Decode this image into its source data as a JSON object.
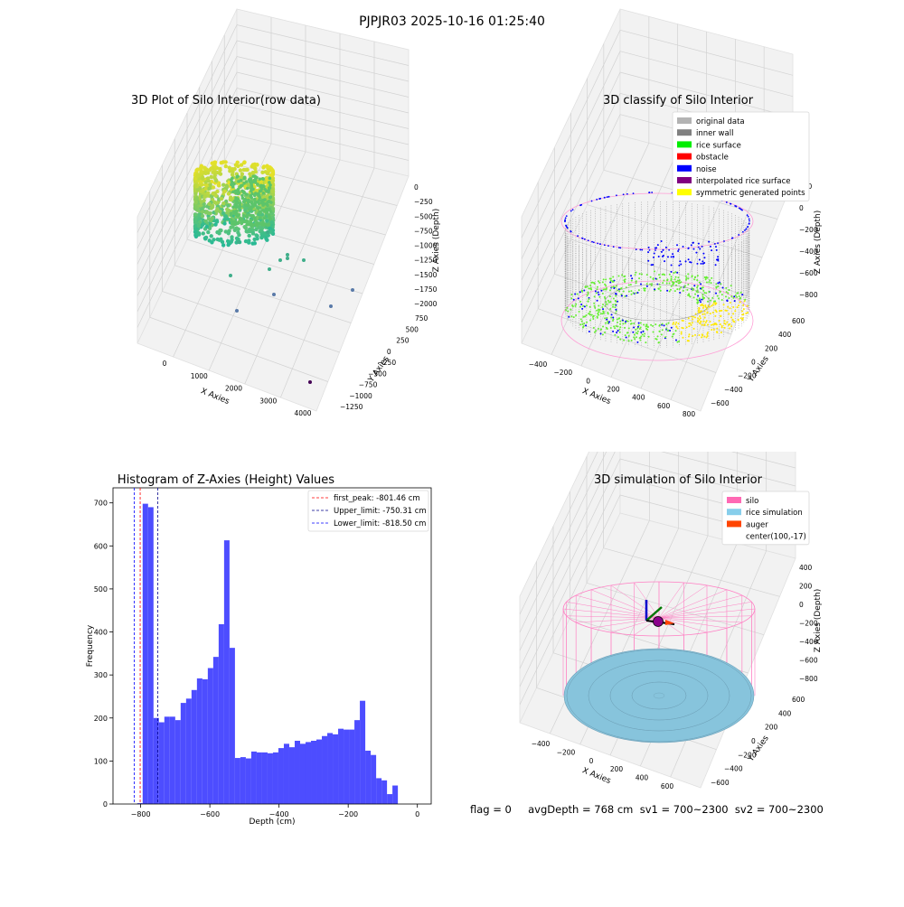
{
  "suptitle": "PJPJR03 2025-10-16 01:25:40",
  "panels": {
    "raw": {
      "title": "3D Plot of Silo Interior(row data)",
      "xlabel": "X Axies",
      "ylabel": "Y Axies",
      "zlabel": "Z Axies (Depth)",
      "xticks": [
        "0",
        "1000",
        "2000",
        "3000",
        "4000"
      ],
      "yticks": [
        "750",
        "500",
        "250",
        "0",
        "−250",
        "−500",
        "−750",
        "−1000",
        "−1250"
      ],
      "zticks": [
        "0",
        "−250",
        "−500",
        "−750",
        "−1000",
        "−1250",
        "−1500",
        "−1750",
        "−2000"
      ]
    },
    "classify": {
      "title": "3D classify of Silo Interior",
      "xlabel": "X Axies",
      "ylabel": "Y Axies",
      "zlabel": "Z Axies (Depth)",
      "xticks": [
        "−400",
        "−200",
        "0",
        "200",
        "400",
        "600",
        "800"
      ],
      "yticks": [
        "600",
        "400",
        "200",
        "0",
        "−200",
        "−400",
        "−600"
      ],
      "zticks": [
        "200",
        "0",
        "−200",
        "−400",
        "−600",
        "−800"
      ],
      "legend": [
        {
          "label": "original data",
          "color": "#b3b3b3"
        },
        {
          "label": "inner wall",
          "color": "#808080"
        },
        {
          "label": "rice surface",
          "color": "#00ee00"
        },
        {
          "label": "obstacle",
          "color": "#ff0000"
        },
        {
          "label": "noise",
          "color": "#0000ff"
        },
        {
          "label": "interpolated rice surface",
          "color": "#800080"
        },
        {
          "label": "symmetric generated points",
          "color": "#ffff00"
        }
      ]
    },
    "simulation": {
      "title": "3D simulation of Silo Interior",
      "xlabel": "X Axies",
      "ylabel": "Y Axies",
      "zlabel": "Z Axies (Depth)",
      "xticks": [
        "−400",
        "−200",
        "0",
        "200",
        "400",
        "600"
      ],
      "yticks": [
        "600",
        "400",
        "200",
        "0",
        "−200",
        "−400",
        "−600"
      ],
      "zticks": [
        "400",
        "200",
        "0",
        "−200",
        "−400",
        "−600",
        "−800"
      ],
      "legend": [
        {
          "label": "silo",
          "color": "#ff69b4"
        },
        {
          "label": "rice simulation",
          "color": "#87ceeb"
        },
        {
          "label": "auger",
          "color": "#ff4500"
        },
        {
          "label": "center(100,-17)",
          "color": ""
        }
      ],
      "footer": "flag = 0     avgDepth = 768 cm  sv1 = 700~2300  sv2 = 700~2300"
    }
  },
  "chart_data": [
    {
      "type": "bar",
      "title": "Histogram of Z-Axies (Height) Values",
      "xlabel": "Depth (cm)",
      "ylabel": "Frequency",
      "xlim": [
        -880,
        40
      ],
      "ylim": [
        0,
        735
      ],
      "xticks": [
        -800,
        -600,
        -400,
        -200,
        0
      ],
      "xticklabels": [
        "−800",
        "−600",
        "−400",
        "−200",
        "0"
      ],
      "yticks": [
        0,
        100,
        200,
        300,
        400,
        500,
        600,
        700
      ],
      "bar_color": "#4d4dff",
      "bin_width": 15.7,
      "bin_starts": [
        -810.0,
        -794.3,
        -778.6,
        -762.9,
        -747.2,
        -731.5,
        -715.8,
        -700.1,
        -684.4,
        -668.7,
        -653.0,
        -637.3,
        -621.6,
        -605.9,
        -590.2,
        -574.5,
        -558.8,
        -543.1,
        -527.4,
        -511.7,
        -496.0,
        -480.3,
        -464.6,
        -448.9,
        -433.2,
        -417.5,
        -401.8,
        -386.1,
        -370.4,
        -354.7,
        -339.0,
        -323.3,
        -307.6,
        -291.9,
        -276.2,
        -260.5,
        -244.8,
        -229.1,
        -213.4,
        -197.7,
        -182.0,
        -166.3,
        -150.6,
        -134.9,
        -119.2,
        -103.5,
        -87.8,
        -72.1,
        -56.4,
        -40.7,
        -25.0,
        -9.3
      ],
      "values": [
        2,
        698,
        690,
        200,
        190,
        203,
        203,
        195,
        235,
        245,
        265,
        292,
        290,
        316,
        342,
        418,
        613,
        363,
        107,
        109,
        106,
        122,
        120,
        120,
        118,
        120,
        130,
        140,
        132,
        147,
        140,
        144,
        147,
        150,
        158,
        165,
        162,
        175,
        173,
        173,
        195,
        240,
        124,
        114,
        60,
        55,
        23,
        43,
        0,
        0,
        0,
        0
      ],
      "lines": [
        {
          "label": "first_peak: -801.46 cm",
          "value": -801.46,
          "color": "#ff0000"
        },
        {
          "label": "Upper_limit: -750.31 cm",
          "value": -750.31,
          "color": "#00008b"
        },
        {
          "label": "Lower_limit: -818.50 cm",
          "value": -818.5,
          "color": "#0000ff"
        }
      ]
    }
  ]
}
